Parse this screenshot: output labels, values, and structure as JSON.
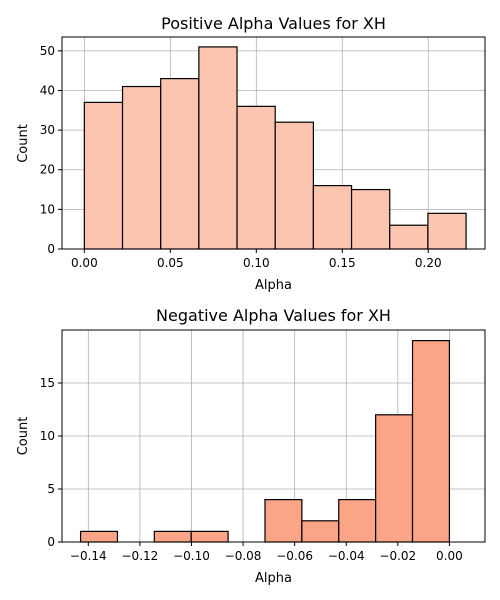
{
  "chart_data": [
    {
      "type": "bar",
      "title": "Positive Alpha Values for XH",
      "xlabel": "Alpha",
      "ylabel": "Count",
      "bar_color": "#fcc5b0",
      "edge_color": "#000000",
      "grid": true,
      "xlim": [
        -0.013,
        0.233
      ],
      "ylim": [
        0,
        53.5
      ],
      "xticks": [
        0.0,
        0.05,
        0.1,
        0.15,
        0.2
      ],
      "xtick_labels": [
        "0.00",
        "0.05",
        "0.10",
        "0.15",
        "0.20"
      ],
      "yticks": [
        0,
        10,
        20,
        30,
        40,
        50
      ],
      "ytick_labels": [
        "0",
        "10",
        "20",
        "30",
        "40",
        "50"
      ],
      "bins": [
        {
          "x0": 0.0,
          "x1": 0.0222,
          "value": 37
        },
        {
          "x0": 0.0222,
          "x1": 0.0444,
          "value": 41
        },
        {
          "x0": 0.0444,
          "x1": 0.0666,
          "value": 43
        },
        {
          "x0": 0.0666,
          "x1": 0.0888,
          "value": 51
        },
        {
          "x0": 0.0888,
          "x1": 0.111,
          "value": 36
        },
        {
          "x0": 0.111,
          "x1": 0.1332,
          "value": 32
        },
        {
          "x0": 0.1332,
          "x1": 0.1554,
          "value": 16
        },
        {
          "x0": 0.1554,
          "x1": 0.1776,
          "value": 15
        },
        {
          "x0": 0.1776,
          "x1": 0.1998,
          "value": 6
        },
        {
          "x0": 0.1998,
          "x1": 0.222,
          "value": 9
        }
      ]
    },
    {
      "type": "bar",
      "title": "Negative Alpha Values for XH",
      "xlabel": "Alpha",
      "ylabel": "Count",
      "bar_color": "#fca486",
      "edge_color": "#000000",
      "grid": true,
      "xlim": [
        -0.1502,
        0.0138
      ],
      "ylim": [
        0,
        20
      ],
      "xticks": [
        -0.14,
        -0.12,
        -0.1,
        -0.08,
        -0.06,
        -0.04,
        -0.02,
        0.0
      ],
      "xtick_labels": [
        "−0.14",
        "−0.12",
        "−0.10",
        "−0.08",
        "−0.06",
        "−0.04",
        "−0.02",
        "0.00"
      ],
      "yticks": [
        0,
        5,
        10,
        15
      ],
      "ytick_labels": [
        "0",
        "5",
        "10",
        "15"
      ],
      "bins": [
        {
          "x0": -0.143,
          "x1": -0.1287,
          "value": 1
        },
        {
          "x0": -0.1287,
          "x1": -0.1144,
          "value": 0
        },
        {
          "x0": -0.1144,
          "x1": -0.1001,
          "value": 1
        },
        {
          "x0": -0.1001,
          "x1": -0.0858,
          "value": 1
        },
        {
          "x0": -0.0858,
          "x1": -0.0715,
          "value": 0
        },
        {
          "x0": -0.0715,
          "x1": -0.0572,
          "value": 4
        },
        {
          "x0": -0.0572,
          "x1": -0.0429,
          "value": 2
        },
        {
          "x0": -0.0429,
          "x1": -0.0286,
          "value": 4
        },
        {
          "x0": -0.0286,
          "x1": -0.0143,
          "value": 12
        },
        {
          "x0": -0.0143,
          "x1": 0.0,
          "value": 19
        }
      ]
    }
  ]
}
